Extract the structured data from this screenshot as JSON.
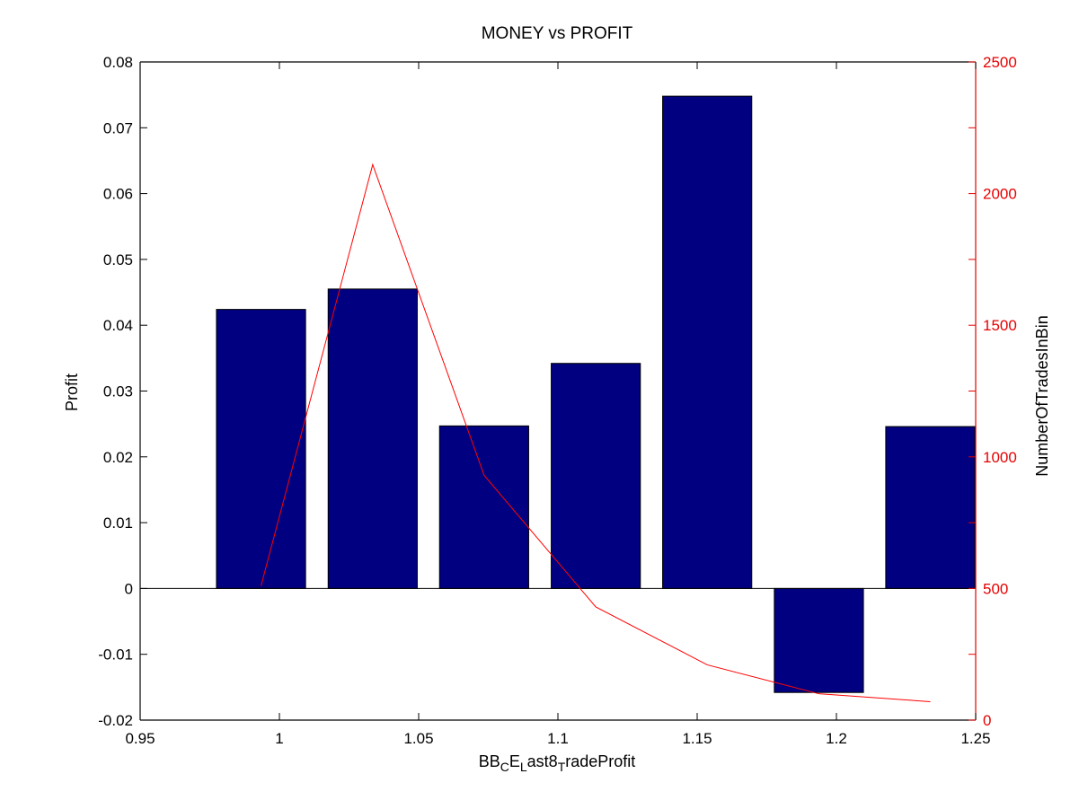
{
  "chart_data": {
    "type": "bar",
    "title": "MONEY vs PROFIT",
    "xlabel": {
      "parts": [
        {
          "text": "BB",
          "sub": false
        },
        {
          "text": "C",
          "sub": true
        },
        {
          "text": "E",
          "sub": false
        },
        {
          "text": "L",
          "sub": true
        },
        {
          "text": "ast8",
          "sub": false
        },
        {
          "text": "T",
          "sub": true
        },
        {
          "text": "radeProfit",
          "sub": false
        }
      ]
    },
    "ylabel": "Profit",
    "y2label": "NumberOfTradesInBin",
    "xlim": [
      0.95,
      1.25
    ],
    "ylim": [
      -0.02,
      0.08
    ],
    "y2lim": [
      0,
      2500
    ],
    "xticks": [
      0.95,
      1.0,
      1.05,
      1.1,
      1.15,
      1.2,
      1.25
    ],
    "xtick_labels": [
      "0.95",
      "1",
      "1.05",
      "1.1",
      "1.15",
      "1.2",
      "1.25"
    ],
    "yticks": [
      -0.02,
      -0.01,
      0,
      0.01,
      0.02,
      0.03,
      0.04,
      0.05,
      0.06,
      0.07,
      0.08
    ],
    "ytick_labels": [
      "-0.02",
      "-0.01",
      "0",
      "0.01",
      "0.02",
      "0.03",
      "0.04",
      "0.05",
      "0.06",
      "0.07",
      "0.08"
    ],
    "y2ticks": [
      0,
      500,
      1000,
      1500,
      2000,
      2500
    ],
    "y2tick_labels": [
      "0",
      "500",
      "1000",
      "1500",
      "2000",
      "2500"
    ],
    "bars": {
      "centers": [
        0.9934,
        1.0335,
        1.0735,
        1.1136,
        1.1536,
        1.1937,
        1.2337
      ],
      "width": 0.032,
      "values": [
        0.0424,
        0.0455,
        0.0247,
        0.0342,
        0.0748,
        -0.0158,
        0.0246
      ],
      "color": "#000080"
    },
    "line": {
      "x": [
        0.9934,
        1.0335,
        1.0735,
        1.1136,
        1.1536,
        1.1937,
        1.2337
      ],
      "values": [
        510,
        2110,
        930,
        430,
        210,
        100,
        70
      ],
      "color": "#ff0000"
    },
    "grid": false,
    "legend": "none",
    "left_axis_color": "#000000",
    "right_axis_color": "#e60000"
  }
}
